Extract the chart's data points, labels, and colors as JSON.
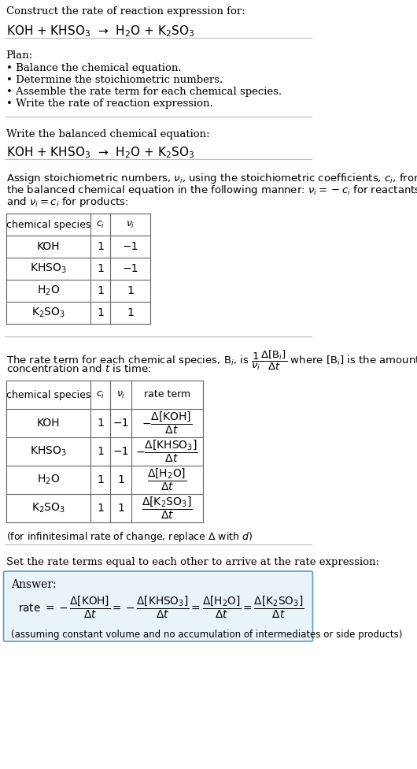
{
  "bg_color": "#ffffff",
  "text_color": "#000000",
  "font_family": "DejaVu Serif",
  "section1_title": "Construct the rate of reaction expression for:",
  "section1_equation": "KOH + KHSO$_3$  →  H$_2$O + K$_2$SO$_3$",
  "section2_title": "Plan:",
  "section2_bullets": [
    "• Balance the chemical equation.",
    "• Determine the stoichiometric numbers.",
    "• Assemble the rate term for each chemical species.",
    "• Write the rate of reaction expression."
  ],
  "section3_title": "Write the balanced chemical equation:",
  "section3_equation": "KOH + KHSO$_3$  →  H$_2$O + K$_2$SO$_3$",
  "section4_para": "Assign stoichiometric numbers, $\\nu_i$, using the stoichiometric coefficients, $c_i$, from\nthe balanced chemical equation in the following manner: $\\nu_i = -c_i$ for reactants\nand $\\nu_i = c_i$ for products:",
  "table1_headers": [
    "chemical species",
    "$c_i$",
    "$\\nu_i$"
  ],
  "table1_rows": [
    [
      "KOH",
      "1",
      "−1"
    ],
    [
      "KHSO$_3$",
      "1",
      "−1"
    ],
    [
      "H$_2$O",
      "1",
      "1"
    ],
    [
      "K$_2$SO$_3$",
      "1",
      "1"
    ]
  ],
  "section5_para": "The rate term for each chemical species, B$_i$, is $\\dfrac{1}{\\nu_i}\\dfrac{\\Delta[\\mathrm{B}_i]}{\\Delta t}$ where [B$_i$] is the amount\nconcentration and $t$ is time:",
  "table2_headers": [
    "chemical species",
    "$c_i$",
    "$\\nu_i$",
    "rate term"
  ],
  "table2_rows": [
    [
      "KOH",
      "1",
      "−1",
      "$-\\dfrac{\\Delta[\\mathrm{KOH}]}{\\Delta t}$"
    ],
    [
      "KHSO$_3$",
      "1",
      "−1",
      "$-\\dfrac{\\Delta[\\mathrm{KHSO_3}]}{\\Delta t}$"
    ],
    [
      "H$_2$O",
      "1",
      "1",
      "$\\dfrac{\\Delta[\\mathrm{H_2O}]}{\\Delta t}$"
    ],
    [
      "K$_2$SO$_3$",
      "1",
      "1",
      "$\\dfrac{\\Delta[\\mathrm{K_2SO_3}]}{\\Delta t}$"
    ]
  ],
  "infinitesimal_note": "(for infinitesimal rate of change, replace Δ with $d$)",
  "section6_title": "Set the rate terms equal to each other to arrive at the rate expression:",
  "answer_box_color": "#e8f4f8",
  "answer_box_border": "#5b9bd5",
  "answer_label": "Answer:",
  "answer_rate": "rate $= -\\dfrac{\\Delta[\\mathrm{KOH}]}{\\Delta t} = -\\dfrac{\\Delta[\\mathrm{KHSO_3}]}{\\Delta t} = \\dfrac{\\Delta[\\mathrm{H_2O}]}{\\Delta t} = \\dfrac{\\Delta[\\mathrm{K_2SO_3}]}{\\Delta t}$",
  "answer_note": "(assuming constant volume and no accumulation of intermediates or side products)"
}
